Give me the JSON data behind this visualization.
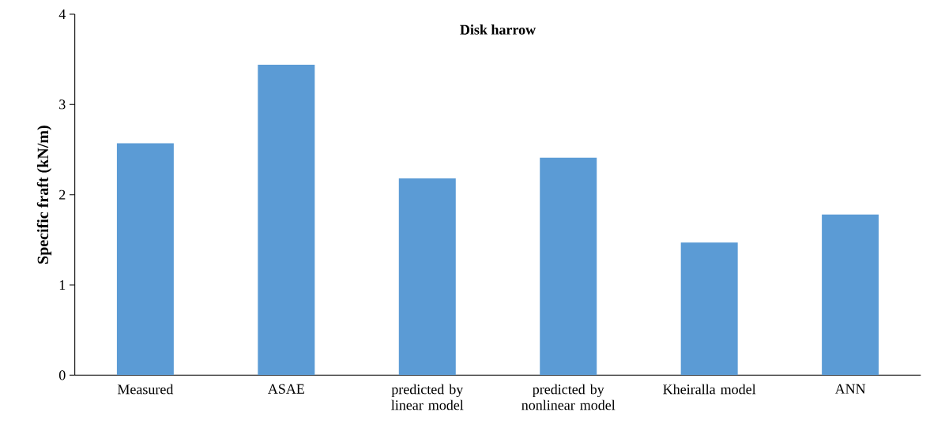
{
  "chart_data": {
    "type": "bar",
    "title": "Disk harrow",
    "ylabel": "Specific fraft (kN/m)",
    "categories": [
      "Measured",
      "ASAE",
      "predicted by linear model",
      "predicted by nonlinear model",
      "Kheiralla model",
      "ANN"
    ],
    "values": [
      2.57,
      3.44,
      2.18,
      2.41,
      1.47,
      1.78
    ],
    "color": "#5b9bd5",
    "ylim": [
      0,
      4
    ],
    "yticks": [
      0,
      1,
      2,
      3,
      4
    ]
  }
}
